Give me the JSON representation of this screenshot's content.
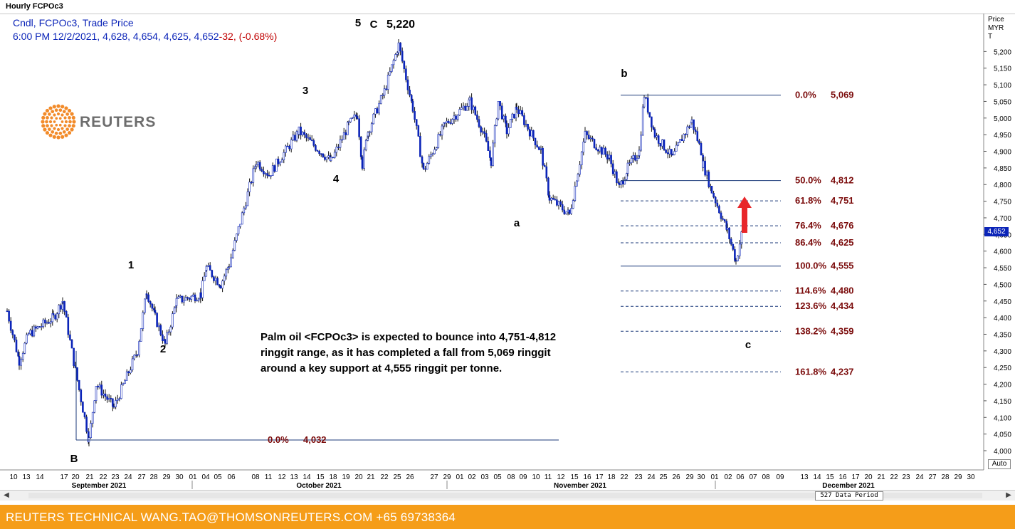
{
  "window": {
    "title": "Hourly FCPOc3"
  },
  "legend": {
    "line1": "Cndl, FCPOc3, Trade Price",
    "line2_main": "6:00 PM 12/2/2021, 4,628, 4,654, 4,625, 4,652",
    "line2_change": "-32, (-0.68%)"
  },
  "logo": {
    "text": "REUTERS"
  },
  "price_axis": {
    "header_line1": "Price",
    "header_line2": "MYR",
    "header_line3": "T",
    "current_price": "4,652",
    "auto_label": "Auto"
  },
  "footer": {
    "text": "REUTERS TECHNICAL  WANG.TAO@THOMSONREUTERS.COM  +65 69738364"
  },
  "scrollbar": {
    "period_label": "527 Data Period",
    "left_arrow": "◀",
    "right_arrow": "▶"
  },
  "colors": {
    "candle": "#0b24b8",
    "fib_label": "#7a0a0a",
    "fib_line": "#1b3a7a",
    "footer": "#f59d19",
    "arrow": "#e8262a"
  },
  "chart_data": {
    "type": "candlestick",
    "series_name": "FCPOc3",
    "ylim": [
      3980,
      5250
    ],
    "yticks": [
      4000,
      4050,
      4100,
      4150,
      4200,
      4250,
      4300,
      4350,
      4400,
      4450,
      4500,
      4550,
      4600,
      4650,
      4700,
      4750,
      4800,
      4850,
      4900,
      4950,
      5000,
      5050,
      5100,
      5150,
      5200
    ],
    "ytick_labels": [
      "4,000",
      "4,050",
      "4,100",
      "4,150",
      "4,200",
      "4,250",
      "4,300",
      "4,350",
      "4,400",
      "4,450",
      "4,500",
      "4,550",
      "4,600",
      "4,650",
      "4,700",
      "4,750",
      "4,800",
      "4,850",
      "4,900",
      "4,950",
      "5,000",
      "5,050",
      "5,100",
      "5,150",
      "5,200"
    ],
    "day_labels": [
      "10",
      "13",
      "14",
      "17",
      "20",
      "21",
      "22",
      "23",
      "24",
      "27",
      "28",
      "29",
      "30",
      "01",
      "04",
      "05",
      "06",
      "08",
      "11",
      "12",
      "13",
      "14",
      "15",
      "18",
      "19",
      "20",
      "21",
      "22",
      "25",
      "26",
      "27",
      "29",
      "01",
      "02",
      "03",
      "05",
      "08",
      "09",
      "10",
      "11",
      "12",
      "15",
      "16",
      "17",
      "18",
      "22",
      "23",
      "24",
      "25",
      "26",
      "29",
      "30",
      "01",
      "02",
      "06",
      "07",
      "08",
      "09",
      "13",
      "14",
      "15",
      "16",
      "17",
      "20",
      "21",
      "22",
      "23",
      "24",
      "27",
      "28",
      "29",
      "30"
    ],
    "months": [
      "September 2021",
      "October 2021",
      "November 2021",
      "December 2021"
    ],
    "path": [
      [
        "Sep 10",
        4420
      ],
      [
        "Sep 13",
        4270
      ],
      [
        "Sep 14",
        4350
      ],
      [
        "Sep 15",
        4400
      ],
      [
        "Sep 16",
        4450
      ],
      [
        "Sep 17",
        4240
      ],
      [
        "Sep 20",
        4032
      ],
      [
        "Sep 21",
        4200
      ],
      [
        "Sep 22",
        4130
      ],
      [
        "Sep 23",
        4300
      ],
      [
        "Sep 24",
        4480
      ],
      [
        "Sep 27",
        4400
      ],
      [
        "Sep 28",
        4320
      ],
      [
        "Sep 29",
        4450
      ],
      [
        "Sep 30",
        4470
      ],
      [
        "Oct 01",
        4550
      ],
      [
        "Oct 04",
        4500
      ],
      [
        "Oct 05",
        4560
      ],
      [
        "Oct 06",
        4870
      ],
      [
        "Oct 08",
        4830
      ],
      [
        "Oct 11",
        4960
      ],
      [
        "Oct 12",
        4870
      ],
      [
        "Oct 13",
        4980
      ],
      [
        "Oct 14",
        5010
      ],
      [
        "Oct 15",
        4860
      ],
      [
        "Oct 18",
        4960
      ],
      [
        "Oct 19",
        5080
      ],
      [
        "Oct 20",
        5220
      ],
      [
        "Oct 21",
        5030
      ],
      [
        "Oct 22",
        4840
      ],
      [
        "Oct 25",
        4980
      ],
      [
        "Oct 26",
        5050
      ],
      [
        "Oct 27",
        4960
      ],
      [
        "Oct 29",
        4870
      ],
      [
        "Nov 01",
        5050
      ],
      [
        "Nov 02",
        4960
      ],
      [
        "Nov 03",
        5030
      ],
      [
        "Nov 05",
        4900
      ],
      [
        "Nov 08",
        4760
      ],
      [
        "Nov 09",
        4710
      ],
      [
        "Nov 10",
        4840
      ],
      [
        "Nov 11",
        4950
      ],
      [
        "Nov 12",
        4880
      ],
      [
        "Nov 15",
        4790
      ],
      [
        "Nov 16",
        4850
      ],
      [
        "Nov 17",
        4900
      ],
      [
        "Nov 18",
        5069
      ],
      [
        "Nov 22",
        4950
      ],
      [
        "Nov 23",
        4880
      ],
      [
        "Nov 24",
        4940
      ],
      [
        "Nov 25",
        4990
      ],
      [
        "Nov 26",
        4900
      ],
      [
        "Nov 29",
        4860
      ],
      [
        "Nov 30",
        4780
      ],
      [
        "Dec 01",
        4660
      ],
      [
        "Dec 02",
        4570
      ],
      [
        "Dec 02 (last)",
        4652
      ]
    ],
    "fibonacci_upper": [
      {
        "pct": "0.0%",
        "value": "5,069",
        "v": 5069
      },
      {
        "pct": "50.0%",
        "value": "4,812",
        "v": 4812
      },
      {
        "pct": "61.8%",
        "value": "4,751",
        "v": 4751
      },
      {
        "pct": "76.4%",
        "value": "4,676",
        "v": 4676
      },
      {
        "pct": "86.4%",
        "value": "4,625",
        "v": 4625
      },
      {
        "pct": "100.0%",
        "value": "4,555",
        "v": 4555
      },
      {
        "pct": "114.6%",
        "value": "4,480",
        "v": 4480
      },
      {
        "pct": "123.6%",
        "value": "4,434",
        "v": 4434
      },
      {
        "pct": "138.2%",
        "value": "4,359",
        "v": 4359
      },
      {
        "pct": "161.8%",
        "value": "4,237",
        "v": 4237
      }
    ],
    "fibonacci_lower": {
      "pct": "0.0%",
      "value": "4,032",
      "v": 4032
    },
    "wave_labels": [
      "1",
      "2",
      "3",
      "4",
      "5",
      "C",
      "5,220",
      "a",
      "b",
      "c",
      "B"
    ],
    "annotation": [
      "Palm oil <FCPOc3> is expected to bounce into 4,751-4,812",
      "ringgit range, as it has completed a fall from 5,069 ringgit",
      "around a key support at 4,555 ringgit per tonne."
    ]
  }
}
